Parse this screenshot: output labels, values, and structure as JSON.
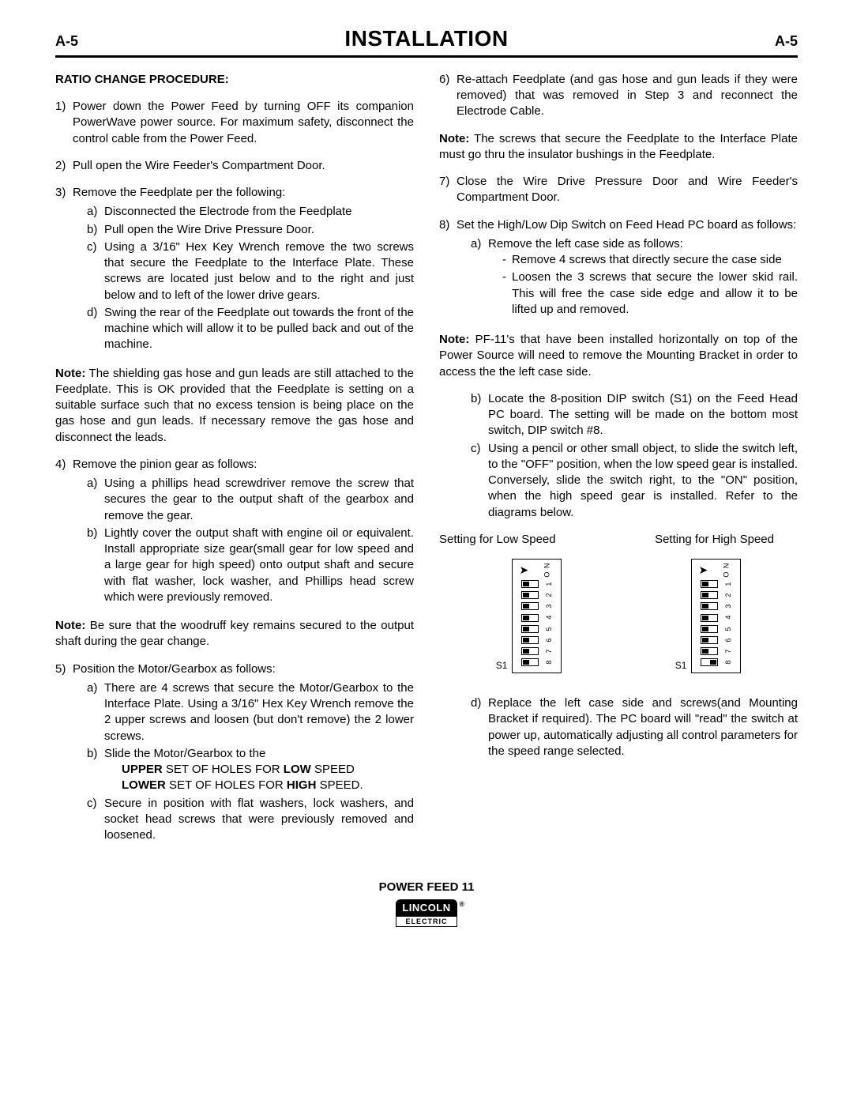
{
  "header": {
    "left": "A-5",
    "center": "INSTALLATION",
    "right": "A-5"
  },
  "left_col": {
    "heading": "RATIO CHANGE PROCEDURE:",
    "item1": {
      "num": "1)",
      "text": "Power down the Power Feed by turning OFF its companion PowerWave power source. For maximum safety, disconnect the control cable from the Power Feed."
    },
    "item2": {
      "num": "2)",
      "text": "Pull open the Wire Feeder's Compartment Door."
    },
    "item3": {
      "num": "3)",
      "text": "Remove the Feedplate per the following:",
      "a": {
        "let": "a)",
        "text": "Disconnected the Electrode from the Feedplate"
      },
      "b": {
        "let": "b)",
        "text": "Pull open the Wire Drive Pressure Door."
      },
      "c": {
        "let": "c)",
        "text": "Using a 3/16\" Hex Key Wrench remove the two screws that secure the Feedplate to the Interface Plate. These screws are located just below and to the right and just below and to left of the lower drive gears."
      },
      "d": {
        "let": "d)",
        "text": "Swing the rear of the Feedplate out towards the front of the machine which will allow it to be pulled back and out of the machine."
      }
    },
    "note1": {
      "label": "Note:",
      "text": " The shielding gas hose and gun leads are still attached to the Feedplate. This is OK provided that the Feedplate is setting on a suitable surface such that no excess tension is being place on the gas hose and gun leads. If necessary remove the gas hose and disconnect the leads."
    },
    "item4": {
      "num": "4)",
      "text": "Remove the pinion gear as follows:",
      "a": {
        "let": "a)",
        "text": "Using a phillips head screwdriver remove the screw that secures the gear to the output shaft of the gearbox and remove the gear."
      },
      "b": {
        "let": "b)",
        "text": "Lightly cover the output shaft with engine oil or equivalent. Install appropriate size gear(small gear for low speed and a large gear for high speed) onto output shaft and secure with flat washer, lock washer, and Phillips head screw which were previously removed."
      }
    },
    "note2": {
      "label": "Note:",
      "text": " Be sure that the woodruff key remains secured to the output shaft during the gear change."
    },
    "item5": {
      "num": "5)",
      "text": "Position the Motor/Gearbox as follows:",
      "a": {
        "let": "a)",
        "text": "There are 4 screws that secure the Motor/Gearbox to the Interface Plate. Using a 3/16\" Hex Key Wrench remove the 2 upper screws and loosen (but don't remove) the 2 lower screws."
      },
      "b": {
        "let": "b)",
        "text": "Slide the Motor/Gearbox to the",
        "line1_pre": "UPPER",
        "line1_mid": " SET OF HOLES FOR ",
        "line1_b2": "LOW",
        "line1_post": " SPEED",
        "line2_pre": "LOWER",
        "line2_mid": " SET OF HOLES FOR ",
        "line2_b2": "HIGH",
        "line2_post": " SPEED."
      },
      "c": {
        "let": "c)",
        "text": "Secure in position with flat washers, lock washers, and socket head screws that were previously removed and loosened."
      }
    }
  },
  "right_col": {
    "item6": {
      "num": "6)",
      "text": "Re-attach Feedplate (and gas hose and gun leads if they were removed) that was removed in Step 3 and reconnect the Electrode Cable."
    },
    "note3": {
      "label": "Note:",
      "text": " The screws that secure the Feedplate to the Interface Plate must go thru the insulator bushings in the Feedplate."
    },
    "item7": {
      "num": "7)",
      "text": "Close the Wire Drive Pressure Door and Wire Feeder's Compartment Door."
    },
    "item8": {
      "num": "8)",
      "text": "Set the High/Low Dip Switch on Feed Head PC board as follows:",
      "a": {
        "let": "a)",
        "text": "Remove the left case side as follows:",
        "d1": "Remove 4 screws that directly secure the case side",
        "d2": "Loosen the 3 screws that secure the lower skid rail. This will free the case side edge and allow it to be lifted up and removed."
      }
    },
    "note4": {
      "label": "Note:",
      "text": " PF-11's that have been installed horizontally on top of the Power Source will need to remove the Mounting Bracket in order to access the the left case side."
    },
    "item8b": {
      "let": "b)",
      "text": "Locate the 8-position DIP switch (S1) on the Feed Head PC board. The setting will be made on the bottom most switch, DIP switch #8."
    },
    "item8c": {
      "let": "c)",
      "text": "Using a pencil or other small object, to slide the switch left, to the \"OFF\" position, when the low speed gear is installed.  Conversely, slide the switch right, to the \"ON\" position, when the high speed gear is installed.  Refer to the diagrams below."
    },
    "dip": {
      "low_caption": "Setting for Low Speed",
      "high_caption": "Setting for High Speed",
      "s1": "S1",
      "on": "O N",
      "nums": [
        "1",
        "2",
        "3",
        "4",
        "5",
        "6",
        "7",
        "8"
      ],
      "low_positions": [
        "left",
        "left",
        "left",
        "left",
        "left",
        "left",
        "left",
        "left"
      ],
      "high_positions": [
        "left",
        "left",
        "left",
        "left",
        "left",
        "left",
        "left",
        "right"
      ]
    },
    "item8d": {
      "let": "d)",
      "text": "Replace the left case side and screws(and Mounting Bracket if required). The PC board will \"read\" the switch at power up, automatically adjusting all control parameters for the speed range selected."
    }
  },
  "footer": {
    "title": "POWER FEED 11",
    "logo_top": "LINCOLN",
    "logo_bot": "ELECTRIC"
  }
}
